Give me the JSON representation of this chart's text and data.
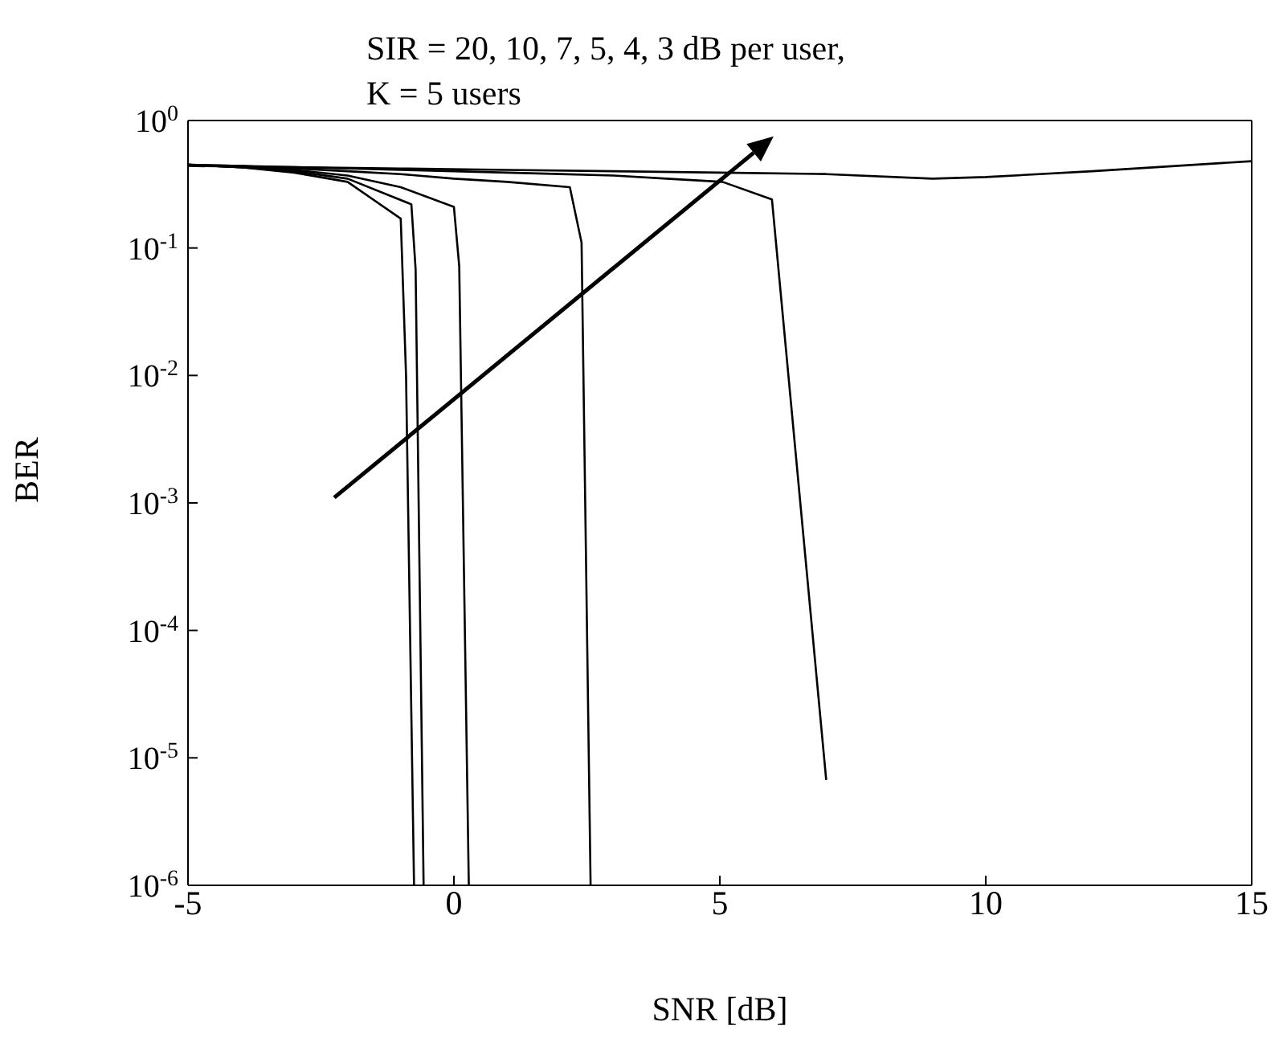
{
  "chart_data": {
    "type": "line",
    "title": "SIR = 20, 10, 7, 5, 4, 3 dB per user,",
    "subtitle": "K = 5 users",
    "xlabel": "SNR [dB]",
    "ylabel": "BER",
    "log": "y",
    "xlim": [
      -5,
      15
    ],
    "xticks": [
      -5,
      0,
      5,
      10,
      15
    ],
    "ylim": [
      1e-06,
      1
    ],
    "yticks": [
      {
        "value": 1,
        "label": "10$^{0}$"
      },
      {
        "value": 0.1,
        "label": "10$^{-1}$"
      },
      {
        "value": 0.01,
        "label": "10$^{-2}$"
      },
      {
        "value": 0.001,
        "label": "10$^{-3}$"
      },
      {
        "value": 0.0001,
        "label": "10$^{-4}$"
      },
      {
        "value": 1e-05,
        "label": "10$^{-5}$"
      },
      {
        "value": 1e-06,
        "label": "10$^{-6}$"
      }
    ],
    "marker": "none",
    "line_style": "solid",
    "series": [
      {
        "color": "#000000",
        "x": [
          -5,
          -4,
          -3,
          -2,
          -1,
          -0.9,
          -0.75
        ],
        "values": [
          0.45,
          0.43,
          0.39,
          0.33,
          0.17,
          0.01,
          1e-06
        ]
      },
      {
        "color": "#000000",
        "x": [
          -5,
          -4,
          -3,
          -2,
          -0.8,
          -0.72,
          -0.57
        ],
        "values": [
          0.45,
          0.43,
          0.4,
          0.35,
          0.22,
          0.068,
          1e-06
        ]
      },
      {
        "color": "#000000",
        "x": [
          -5,
          -4,
          -3,
          -2,
          -1,
          0,
          0.1,
          0.28
        ],
        "values": [
          0.45,
          0.43,
          0.41,
          0.37,
          0.3,
          0.21,
          0.072,
          1e-06
        ]
      },
      {
        "color": "#000000",
        "x": [
          -5,
          -4,
          -3,
          -2,
          -1,
          0,
          1,
          2.18,
          2.4,
          2.57
        ],
        "values": [
          0.45,
          0.44,
          0.42,
          0.4,
          0.38,
          0.35,
          0.33,
          0.3,
          0.11,
          1e-06
        ]
      },
      {
        "color": "#000000",
        "x": [
          -5,
          -4,
          -3,
          -2,
          -1,
          0,
          1,
          2,
          3,
          4,
          5.05,
          5.98,
          7
        ],
        "values": [
          0.45,
          0.44,
          0.43,
          0.42,
          0.41,
          0.4,
          0.39,
          0.38,
          0.37,
          0.35,
          0.33,
          0.24,
          6.7e-06
        ]
      },
      {
        "color": "#000000",
        "x": [
          -5,
          -3,
          -1,
          1,
          3,
          5,
          7,
          9,
          10,
          12,
          15
        ],
        "values": [
          0.44,
          0.43,
          0.42,
          0.41,
          0.4,
          0.39,
          0.38,
          0.35,
          0.36,
          0.4,
          0.48
        ]
      }
    ]
  }
}
